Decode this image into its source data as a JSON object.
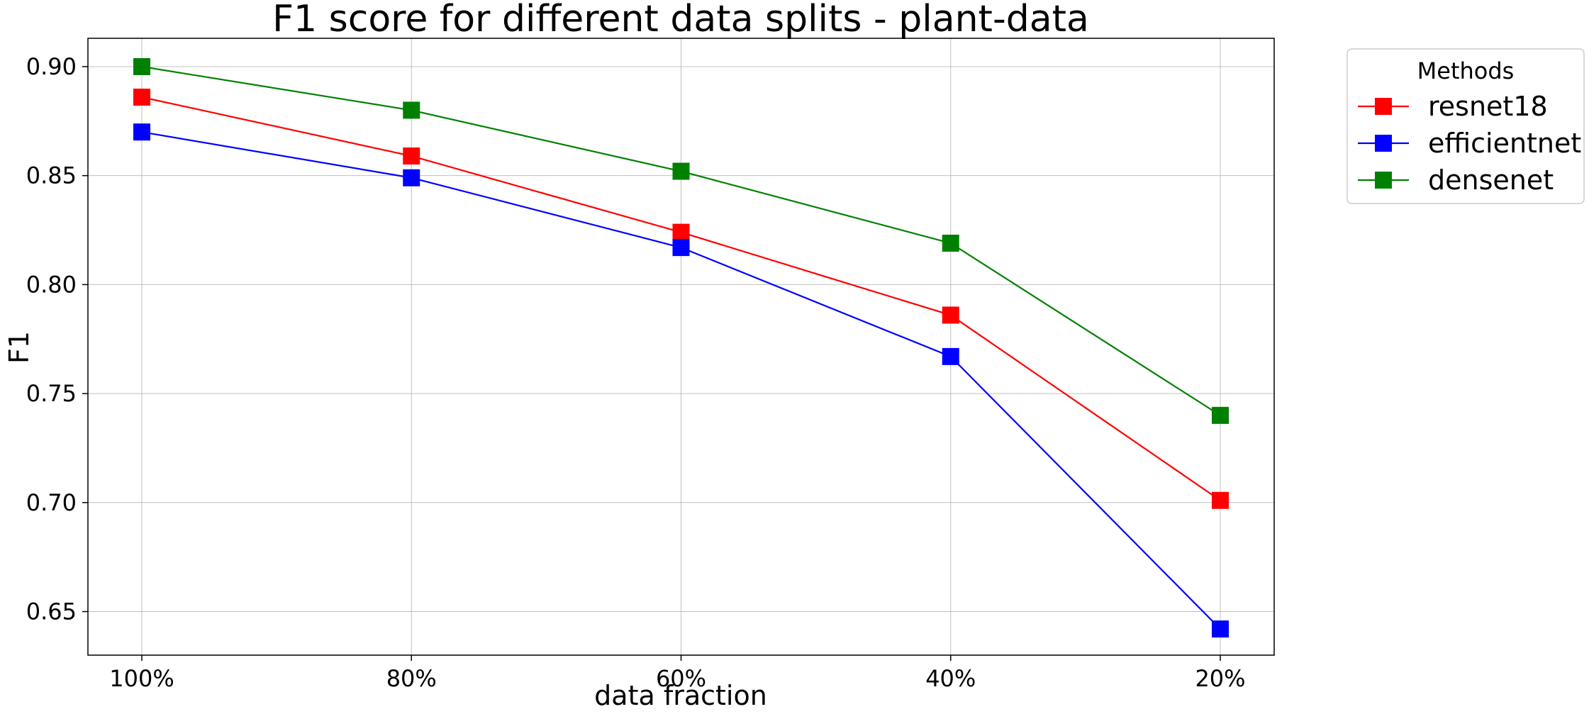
{
  "chart_data": {
    "type": "line",
    "title": "F1 score for different data splits - plant-data",
    "xlabel": "data fraction",
    "ylabel": "F1",
    "categories": [
      "100%",
      "80%",
      "60%",
      "40%",
      "20%"
    ],
    "ylim": [
      0.63,
      0.913
    ],
    "yticks": [
      "0.65",
      "0.70",
      "0.75",
      "0.80",
      "0.85",
      "0.90"
    ],
    "grid": true,
    "legend": {
      "title": "Methods",
      "placement": "outside-top-right"
    },
    "series": [
      {
        "name": "resnet18",
        "color": "#ff0000",
        "marker": "square",
        "values": [
          0.886,
          0.859,
          0.824,
          0.786,
          0.701
        ]
      },
      {
        "name": "efficientnet",
        "color": "#0000ff",
        "marker": "square",
        "values": [
          0.87,
          0.849,
          0.817,
          0.767,
          0.642
        ]
      },
      {
        "name": "densenet",
        "color": "#008000",
        "marker": "square",
        "values": [
          0.9,
          0.88,
          0.852,
          0.819,
          0.74
        ]
      }
    ]
  }
}
